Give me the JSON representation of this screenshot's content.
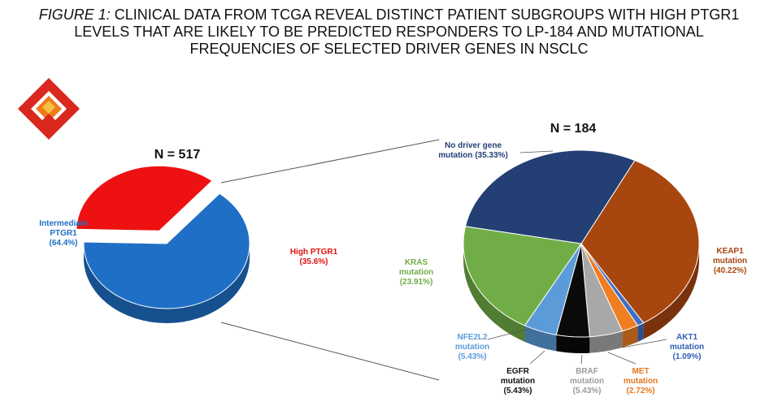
{
  "figure": {
    "title_prefix": "FIGURE 1:",
    "title_lines": [
      "CLINICAL DATA FROM TCGA REVEAL DISTINCT PATIENT SUBGROUPS WITH HIGH PTGR1",
      "LEVELS THAT ARE LIKELY TO BE PREDICTED RESPONDERS TO LP-184 AND MUTATIONAL",
      "FREQUENCIES OF SELECTED DRIVER GENES IN NSCLC"
    ]
  },
  "chart_data": [
    {
      "type": "pie",
      "n_label": "N = 517",
      "slices": [
        {
          "label_lines": [
            "Intermediate",
            "PTGR1"
          ],
          "pct_text": "(64.4%)",
          "value": 64.4,
          "color": "#1f6fc6",
          "label_color": "#1f6fc6"
        },
        {
          "label_lines": [
            "High PTGR1"
          ],
          "pct_text": "(35.6%)",
          "value": 35.6,
          "color": "#ee1111",
          "label_color": "#e01010",
          "exploded": true
        }
      ]
    },
    {
      "type": "pie",
      "n_label": "N = 184",
      "slices": [
        {
          "label_lines": [
            "KEAP1",
            "mutation"
          ],
          "pct_text": "(40.22%)",
          "value": 40.22,
          "color": "#a8460f",
          "label_color": "#a8460f"
        },
        {
          "label_lines": [
            "AKT1",
            "mutation"
          ],
          "pct_text": "(1.09%)",
          "value": 1.09,
          "color": "#3d6fc4",
          "label_color": "#2e60b8"
        },
        {
          "label_lines": [
            "MET",
            "mutation"
          ],
          "pct_text": "(2.72%)",
          "value": 2.72,
          "color": "#ef7d22",
          "label_color": "#e8761c"
        },
        {
          "label_lines": [
            "BRAF",
            "mutation"
          ],
          "pct_text": "(5.43%)",
          "value": 5.43,
          "color": "#a8a8a8",
          "label_color": "#9a9a9a"
        },
        {
          "label_lines": [
            "EGFR",
            "mutation"
          ],
          "pct_text": "(5.43%)",
          "value": 5.43,
          "color": "#0a0a0a",
          "label_color": "#111111"
        },
        {
          "label_lines": [
            "NFE2L2",
            "mutation"
          ],
          "pct_text": "(5.43%)",
          "value": 5.43,
          "color": "#5b9bd8",
          "label_color": "#5b9bd8"
        },
        {
          "label_lines": [
            "KRAS",
            "mutation"
          ],
          "pct_text": "(23.91%)",
          "value": 23.91,
          "color": "#70ad47",
          "label_color": "#70ad47"
        },
        {
          "label_lines": [
            "No driver gene",
            "mutation (35.33%)"
          ],
          "pct_text": "",
          "value": 35.33,
          "color": "#233f73",
          "label_color": "#233f73"
        }
      ]
    }
  ]
}
